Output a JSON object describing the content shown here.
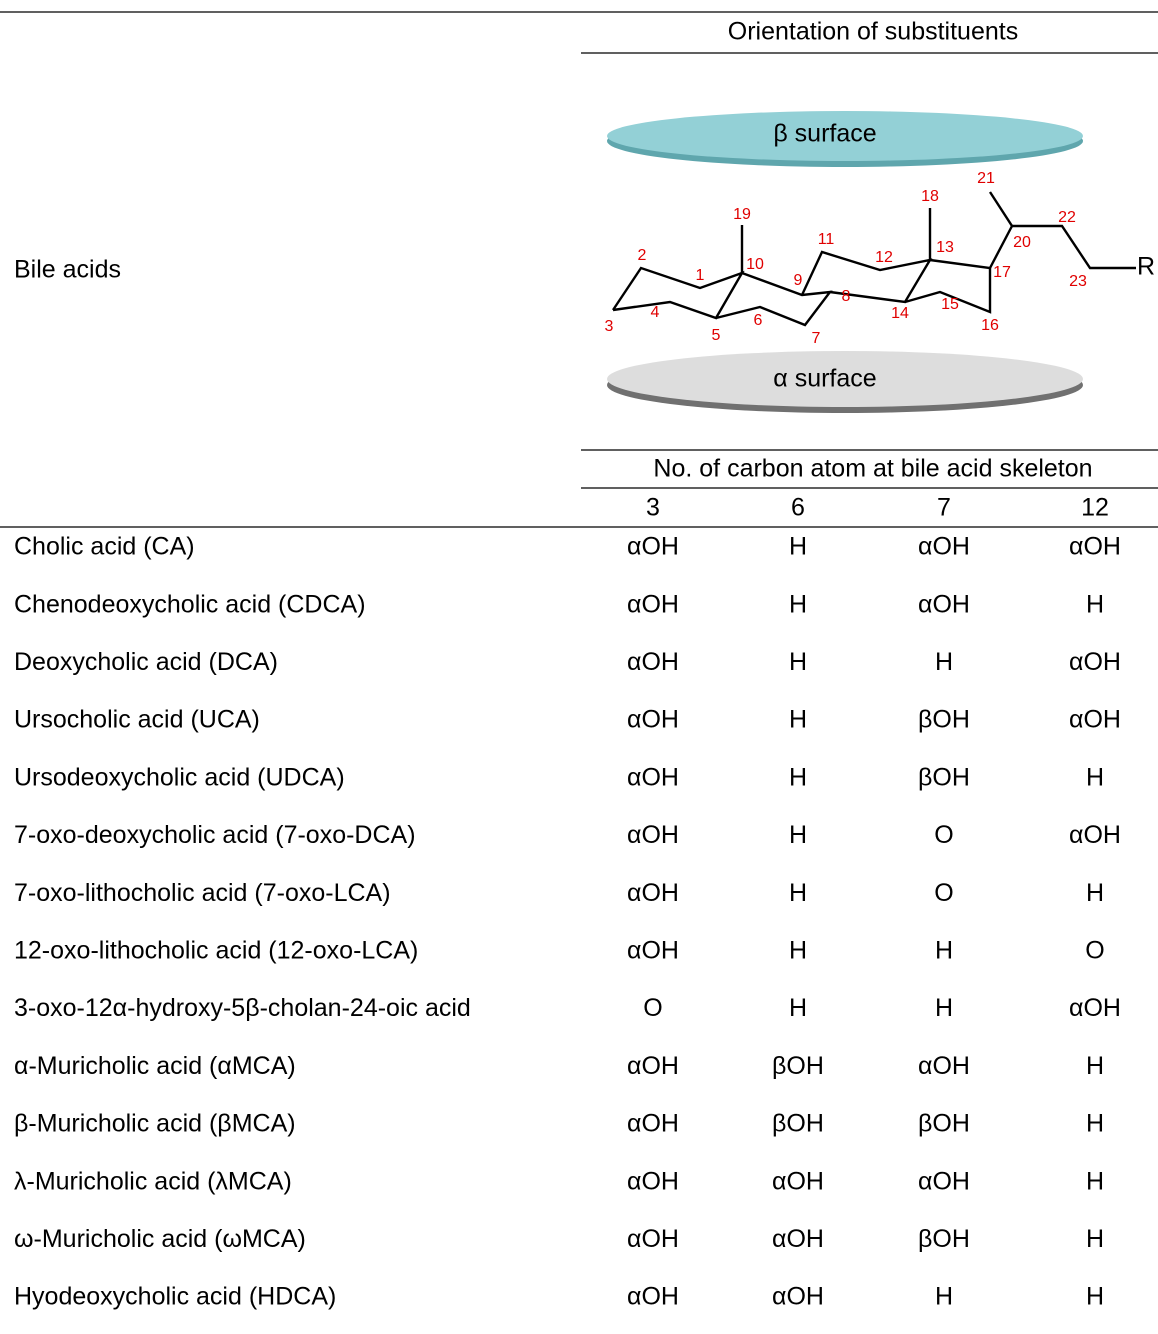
{
  "header": {
    "group_title": "Orientation of substituents",
    "row_label": "Bile acids",
    "sub_title": "No. of carbon atom at bile acid skeleton",
    "columns": [
      "3",
      "6",
      "7",
      "12"
    ]
  },
  "diagram": {
    "beta_label": "β surface",
    "alpha_label": "α surface",
    "r_label": "R",
    "atom_labels": [
      "1",
      "2",
      "3",
      "4",
      "5",
      "6",
      "7",
      "8",
      "9",
      "10",
      "11",
      "12",
      "13",
      "14",
      "15",
      "16",
      "17",
      "18",
      "19",
      "20",
      "21",
      "22",
      "23"
    ]
  },
  "table": {
    "rows": [
      [
        "Cholic acid (CA)",
        "αOH",
        "H",
        "αOH",
        "αOH"
      ],
      [
        "Chenodeoxycholic acid (CDCA)",
        "αOH",
        "H",
        "αOH",
        "H"
      ],
      [
        "Deoxycholic acid (DCA)",
        "αOH",
        "H",
        "H",
        "αOH"
      ],
      [
        "Ursocholic acid (UCA)",
        "αOH",
        "H",
        "βOH",
        "αOH"
      ],
      [
        "Ursodeoxycholic acid (UDCA)",
        "αOH",
        "H",
        "βOH",
        "H"
      ],
      [
        "7-oxo-deoxycholic acid (7-oxo-DCA)",
        "αOH",
        "H",
        "O",
        "αOH"
      ],
      [
        "7-oxo-lithocholic acid (7-oxo-LCA)",
        "αOH",
        "H",
        "O",
        "H"
      ],
      [
        "12-oxo-lithocholic acid (12-oxo-LCA)",
        "αOH",
        "H",
        "H",
        "O"
      ],
      [
        "3-oxo-12α-hydroxy-5β-cholan-24-oic acid",
        "O",
        "H",
        "H",
        "αOH"
      ],
      [
        "α-Muricholic acid (αMCA)",
        "αOH",
        "βOH",
        "αOH",
        "H"
      ],
      [
        "β-Muricholic acid (βMCA)",
        "αOH",
        "βOH",
        "βOH",
        "H"
      ],
      [
        "λ-Muricholic acid (λMCA)",
        "αOH",
        "αOH",
        "αOH",
        "H"
      ],
      [
        "ω-Muricholic acid (ωMCA)",
        "αOH",
        "αOH",
        "βOH",
        "H"
      ],
      [
        "Hyodeoxycholic acid (HDCA)",
        "αOH",
        "αOH",
        "H",
        "H"
      ]
    ]
  }
}
